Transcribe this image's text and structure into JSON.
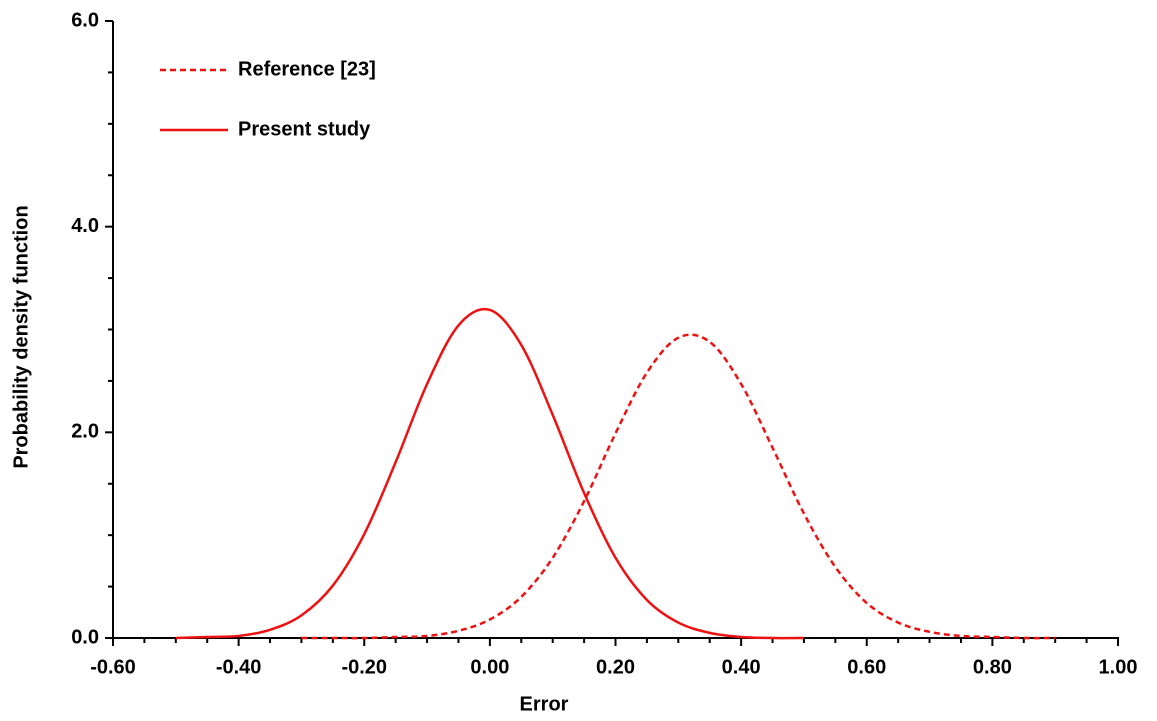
{
  "chart_data": {
    "type": "line",
    "xlabel": "Error",
    "ylabel": "Probability density function",
    "xlim": [
      -0.6,
      1.0
    ],
    "ylim": [
      0,
      6
    ],
    "xticks": [
      {
        "value": -0.6,
        "label": "-0.60"
      },
      {
        "value": -0.4,
        "label": "-0.40"
      },
      {
        "value": -0.2,
        "label": "-0.20"
      },
      {
        "value": 0,
        "label": "0.00"
      },
      {
        "value": 0.2,
        "label": "0.20"
      },
      {
        "value": 0.4,
        "label": "0.40"
      },
      {
        "value": 0.6,
        "label": "0.60"
      },
      {
        "value": 0.8,
        "label": "0.80"
      },
      {
        "value": 1.0,
        "label": "1.00"
      }
    ],
    "yticks": [
      {
        "value": 0,
        "label": "0.0"
      },
      {
        "value": 2,
        "label": "2.0"
      },
      {
        "value": 4,
        "label": "4.0"
      },
      {
        "value": 6,
        "label": "6.0"
      }
    ],
    "x_minor_ticks": [
      -0.55,
      -0.5,
      -0.45,
      -0.35,
      -0.3,
      -0.25,
      -0.15,
      -0.1,
      -0.05,
      0.05,
      0.1,
      0.15,
      0.25,
      0.3,
      0.35,
      0.45,
      0.5,
      0.55,
      0.65,
      0.7,
      0.75,
      0.85,
      0.9,
      0.95
    ],
    "y_minor_ticks": [
      0.5,
      1,
      1.5,
      2.5,
      3,
      3.5,
      4.5,
      5,
      5.5
    ],
    "legend": "upper-left",
    "series": [
      {
        "name": "Reference [23]",
        "color": "#ee1111",
        "dash": true,
        "x": [
          -0.3,
          -0.25,
          -0.2,
          -0.15,
          -0.1,
          -0.05,
          0,
          0.05,
          0.1,
          0.15,
          0.2,
          0.25,
          0.3,
          0.35,
          0.4,
          0.45,
          0.5,
          0.55,
          0.6,
          0.65,
          0.7,
          0.75,
          0.8,
          0.85,
          0.9
        ],
        "values": [
          0,
          0,
          0,
          0.01,
          0.02,
          0.07,
          0.18,
          0.4,
          0.78,
          1.33,
          1.99,
          2.58,
          2.92,
          2.88,
          2.47,
          1.85,
          1.21,
          0.69,
          0.34,
          0.15,
          0.06,
          0.02,
          0.01,
          0,
          0
        ]
      },
      {
        "name": "Present study",
        "color": "#ee1111",
        "dash": false,
        "x": [
          -0.5,
          -0.45,
          -0.4,
          -0.35,
          -0.3,
          -0.25,
          -0.2,
          -0.15,
          -0.1,
          -0.05,
          0,
          0.05,
          0.1,
          0.15,
          0.2,
          0.25,
          0.3,
          0.35,
          0.4,
          0.45,
          0.5
        ],
        "values": [
          0,
          0.01,
          0.02,
          0.08,
          0.22,
          0.51,
          1.01,
          1.71,
          2.47,
          3.04,
          3.19,
          2.85,
          2.17,
          1.41,
          0.78,
          0.37,
          0.15,
          0.05,
          0.01,
          0,
          0
        ]
      }
    ]
  }
}
